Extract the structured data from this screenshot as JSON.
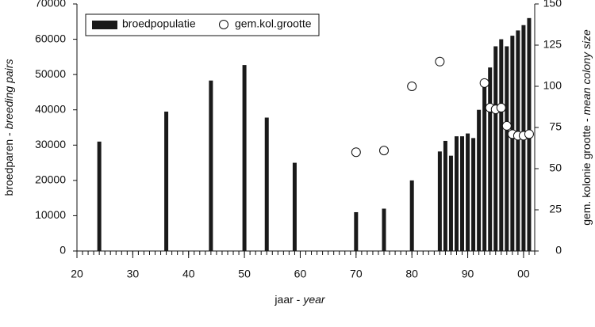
{
  "chart_data": {
    "type": "bar",
    "xlabel": [
      "jaar -",
      "year"
    ],
    "ylabel": [
      "broedparen -",
      "breeding pairs"
    ],
    "y2label": [
      "gem. kolonie grootte -",
      "mean colony size"
    ],
    "xlim": [
      20,
      102
    ],
    "xticks": [
      20,
      30,
      40,
      50,
      60,
      70,
      80,
      90,
      {
        "value": 100,
        "label": "00"
      }
    ],
    "ylim": [
      0,
      70000
    ],
    "yticks": [
      0,
      10000,
      20000,
      30000,
      40000,
      50000,
      60000,
      70000
    ],
    "y2lim": [
      0,
      150
    ],
    "y2ticks": [
      0,
      25,
      50,
      75,
      100,
      125,
      150
    ],
    "legend": "top-left",
    "series": [
      {
        "name": "broedpopulatie",
        "type": "bar",
        "color": "#1a1a1a",
        "x": [
          24,
          36,
          44,
          50,
          54,
          59,
          70,
          75,
          80,
          85,
          86,
          87,
          88,
          89,
          90,
          91,
          92,
          93,
          94,
          95,
          96,
          97,
          98,
          99,
          100,
          101
        ],
        "values": [
          31000,
          39500,
          48300,
          52700,
          37800,
          25000,
          11000,
          12000,
          20000,
          28200,
          31200,
          27000,
          32500,
          32500,
          33300,
          32000,
          40000,
          48000,
          52000,
          58000,
          60000,
          58000,
          61000,
          62500,
          64000,
          66000
        ]
      },
      {
        "name": "gem.kol.grootte",
        "type": "scatter",
        "axis": "y2",
        "color": "#ffffff",
        "x": [
          70,
          75,
          80,
          85,
          93,
          94,
          95,
          96,
          97,
          98,
          99,
          100,
          101
        ],
        "values": [
          60,
          61,
          100,
          115,
          102,
          87,
          86,
          87,
          76,
          71,
          70,
          70,
          71
        ]
      }
    ]
  }
}
